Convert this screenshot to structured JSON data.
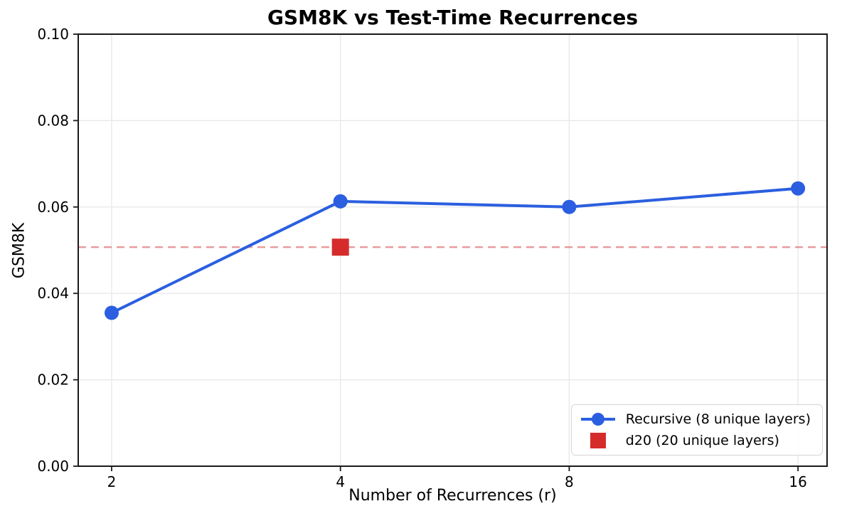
{
  "chart_data": {
    "type": "line",
    "title": "GSM8K vs Test-Time Recurrences",
    "xlabel": "Number of Recurrences (r)",
    "ylabel": "GSM8K",
    "x_scale": "log2",
    "xlim_log2": [
      0.854,
      4.127
    ],
    "ylim": [
      0.0,
      0.1
    ],
    "grid": true,
    "legend_position": "lower right",
    "xticks": [
      2,
      4,
      8,
      16
    ],
    "xtick_labels": [
      "2",
      "4",
      "8",
      "16"
    ],
    "ytick_values": [
      0.0,
      0.02,
      0.04,
      0.06,
      0.08,
      0.1
    ],
    "ytick_labels": [
      "0.00",
      "0.02",
      "0.04",
      "0.06",
      "0.08",
      "0.10"
    ],
    "series": [
      {
        "name": "Recursive (8 unique layers)",
        "type": "line",
        "marker": "circle",
        "color": "#2b5fe0",
        "x": [
          2,
          4,
          8,
          16
        ],
        "values": [
          0.0355,
          0.0613,
          0.06,
          0.0643
        ]
      },
      {
        "name": "d20 (20 unique layers)",
        "type": "scatter",
        "marker": "square",
        "color": "#d62b2b",
        "x": [
          4
        ],
        "values": [
          0.0507
        ]
      }
    ],
    "reference_line": {
      "y": 0.0507,
      "style": "dashed",
      "color": "#d62b2b",
      "opacity": 0.5
    },
    "colors": {
      "recursive_blue": "#2b5fe0",
      "d20_red": "#d62b2b",
      "grid": "#e8e8e8",
      "spine": "#1a1a1a"
    }
  }
}
